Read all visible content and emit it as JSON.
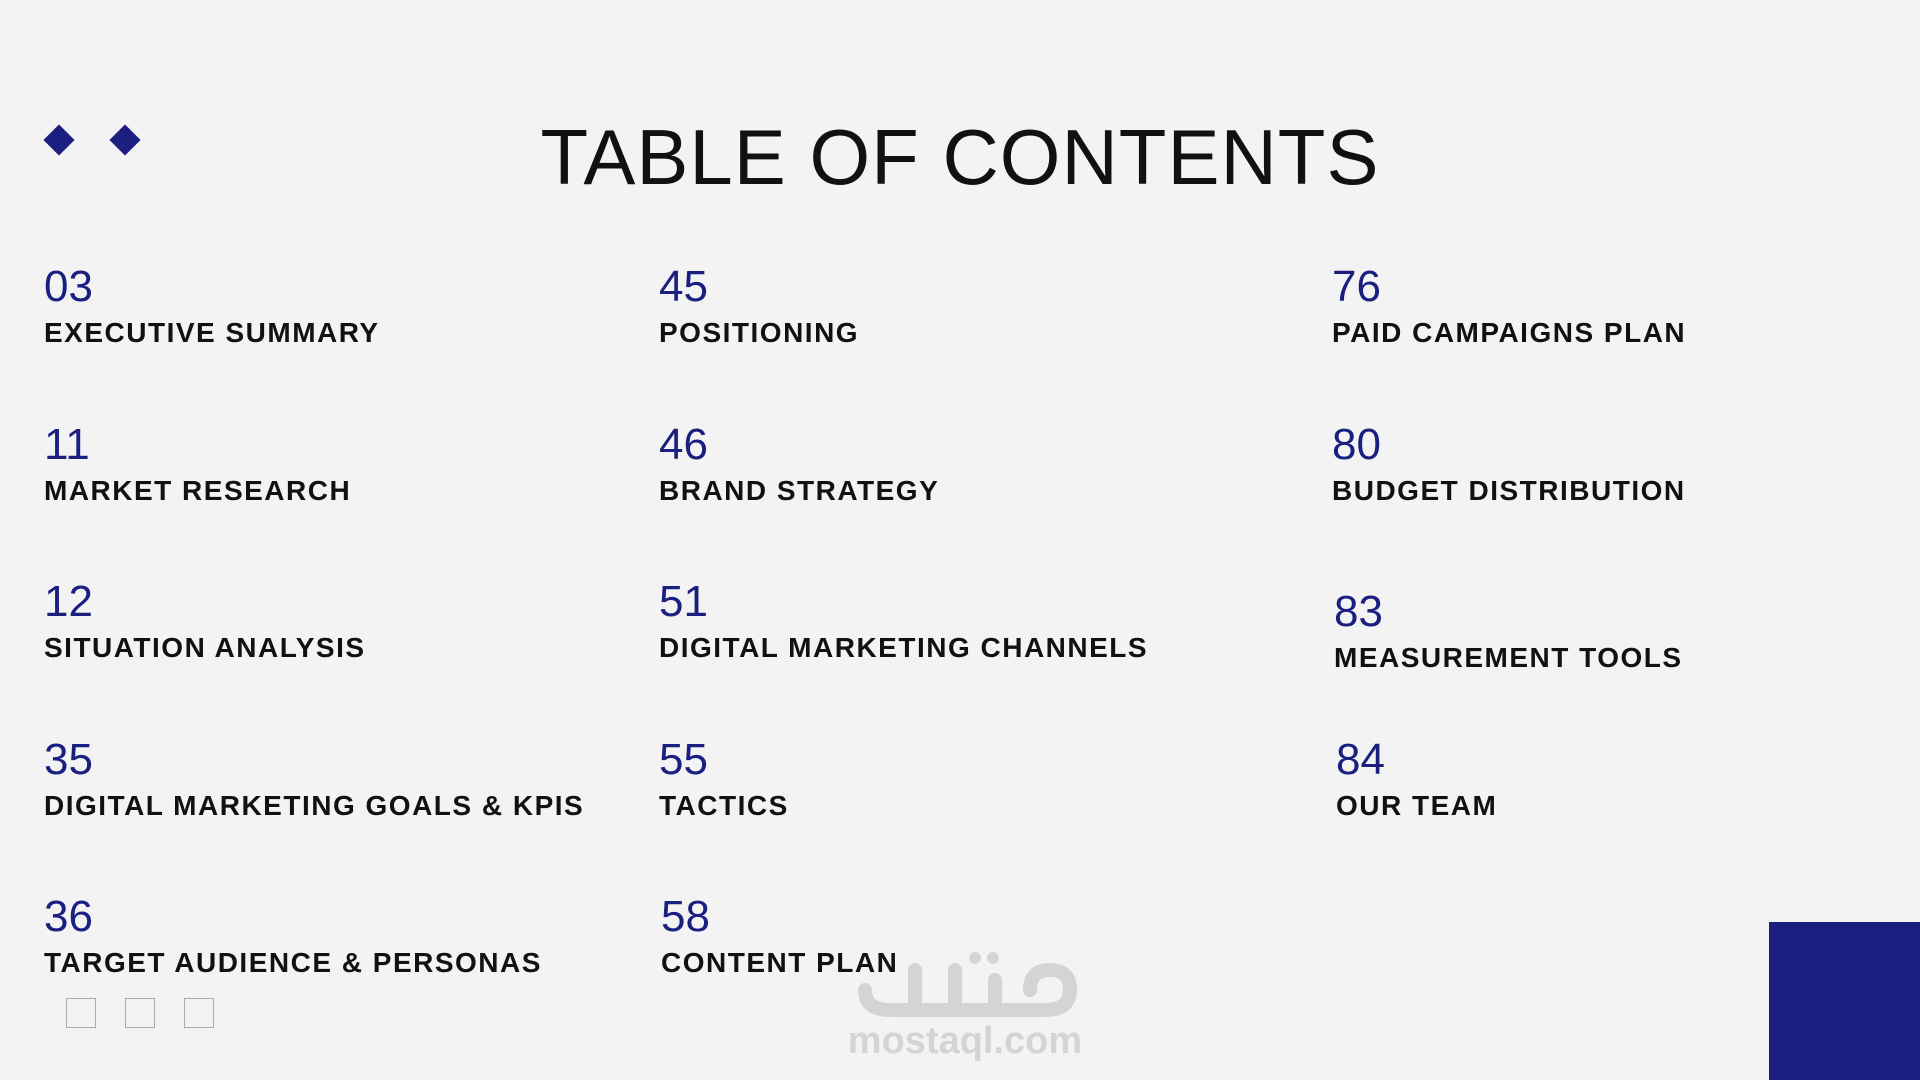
{
  "title": "TABLE OF CONTENTS",
  "accent_color": "#1a1f80",
  "columns": [
    [
      {
        "page": "03",
        "label": "EXECUTIVE SUMMARY"
      },
      {
        "page": "11",
        "label": "MARKET RESEARCH"
      },
      {
        "page": "12",
        "label": "SITUATION ANALYSIS"
      },
      {
        "page": "35",
        "label": "DIGITAL MARKETING GOALS & KPIS"
      },
      {
        "page": "36",
        "label": "TARGET AUDIENCE & PERSONAS"
      }
    ],
    [
      {
        "page": "45",
        "label": "POSITIONING"
      },
      {
        "page": "46",
        "label": "BRAND STRATEGY"
      },
      {
        "page": "51",
        "label": "DIGITAL MARKETING CHANNELS"
      },
      {
        "page": "55",
        "label": "TACTICS"
      },
      {
        "page": "58",
        "label": "CONTENT PLAN"
      }
    ],
    [
      {
        "page": "76",
        "label": "PAID CAMPAIGNS PLAN"
      },
      {
        "page": "80",
        "label": "BUDGET DISTRIBUTION"
      },
      {
        "page": "83",
        "label": "MEASUREMENT TOOLS"
      },
      {
        "page": "84",
        "label": "OUR TEAM"
      }
    ]
  ],
  "watermark": "mostaql.com"
}
